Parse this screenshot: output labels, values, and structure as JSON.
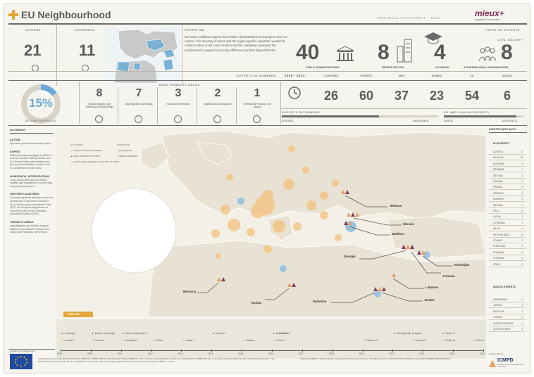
{
  "header": {
    "title": "EU Neighbourhood",
    "factsheet": "REGIONAL FACTSHEET · 2023",
    "brand": "mieux+",
    "brand_sub": "migration EU expertise"
  },
  "stats": {
    "actions_label": "ACTIONS",
    "actions_value": "21",
    "countries_label": "COUNTRIES",
    "countries_value": "11",
    "expertise_label": "EXPERTISE",
    "expertise_text": "Our team mobilises experts from Public Administrations in Europe to work on Actions. The diversity of topics and the region-specific expertise needed for certain Actions in the Latin America and the Caribbean prompted the involvement of experts from many different countries beyond the EU.",
    "types_label": "TYPES OF EXPERTS",
    "types": [
      {
        "value": "40",
        "label": "PUBLIC ADMINISTRATIONS"
      },
      {
        "value": "8",
        "label": "PRIVATE SECTOR"
      },
      {
        "value": "4",
        "label": "ACADEMIA"
      },
      {
        "value": "8",
        "label": "& INTERNATIONAL ORGANISATIONS"
      }
    ],
    "civil_society_label": "CIVIL SOCIETY",
    "portfolio_value": "15%",
    "portfolio_caption": "OF OUR PORTFOLIO",
    "portfolio_fraction": 0.15
  },
  "thematic": {
    "label": "MAIN THEMATIC AREAS",
    "items": [
      {
        "value": "8",
        "label": "Irregular Migration and Trafficking in Human Beings"
      },
      {
        "value": "7",
        "label": "Legal Migration and Mobility"
      },
      {
        "value": "3",
        "label": "Horizontal Interventions"
      },
      {
        "value": "2",
        "label": "Migration and Development"
      },
      {
        "value": "1",
        "label": "International Protection and Asylum"
      }
    ]
  },
  "experts_numbers": {
    "label": "EXPERTS IN NUMBERS",
    "period_label": "2009 - 2023",
    "items": [
      {
        "label": "COUNTRIES",
        "value": "26"
      },
      {
        "label": "EXPERTS",
        "value": "60"
      },
      {
        "label": "MEN",
        "value": "37"
      },
      {
        "label": "WOMEN",
        "value": "23"
      },
      {
        "label": "EU",
        "value": "54"
      },
      {
        "label": "NON-EU",
        "value": "6"
      }
    ],
    "gender_label": "EXPERTS BY GENDER",
    "men_text": "62% MEN",
    "women_text": "38% WOMEN",
    "men_fraction": 0.62,
    "origin_label": "EU AND NON-EU EXPERTS",
    "eu_text": "90% EU",
    "noneu_text": "10% NON-EU",
    "eu_fraction": 0.9
  },
  "glossary": {
    "title": "GLOSSARY",
    "entries": [
      {
        "term": "ACTION",
        "def": "Approved capacity development project."
      },
      {
        "term": "EXPERT",
        "def": "Skilled professional engaged by MIEUX+ to work on Actions. Mainly officials from EU Member States administrations but also from administrations outside of the EU, academia or private sector."
      },
      {
        "term": "HORIZONTAL INTERVENTIONS",
        "def": "Cross-cutting areas such as climate mobility, data management, human rights and policy development."
      },
      {
        "term": "PARTNER COUNTRIES",
        "def": "Countries eligible for assistance under the Development Cooperation Instrument (DCI), the European Development Fund (EDF), the European Neighbourhood Instrument (ENI) and the Overseas Association Decision (OAD)."
      },
      {
        "term": "THEMATIC AREAS",
        "def": "Legal Migration and Mobility, Irregular Migration, International Protection and Asylum and Horizontal Interventions."
      }
    ]
  },
  "legend": {
    "actions_label": "ACTIONS",
    "single": "SINGLE-COUNTRY ACTIONS",
    "multi": "MULTI-COUNTRY ACTIONS",
    "both": "BOTH SINGLE & MULTI-COUNTRY ACTIONS",
    "experts_label": "EXPERTS",
    "eu": "EU EXPERTS",
    "noneu": "NON-EU EXPERTS",
    "color_single": "#e8a062",
    "color_multi": "#8c3b5a",
    "color_eu": "#f5c17a",
    "color_noneu": "#8fbde0"
  },
  "countries": [
    "Belarus",
    "Ukraine",
    "Moldova",
    "Georgia",
    "Azerbaijan",
    "Armenia",
    "Lebanon",
    "Jordan",
    "Palestine",
    "Tunisia",
    "Morocco"
  ],
  "experts_with": {
    "title": "EXPERTS WITH AUTH.",
    "eu_title": "EU EXPERTS",
    "eu_rows": [
      {
        "name": "AUSTRIA",
        "value": "4"
      },
      {
        "name": "BELGIUM",
        "value": "10"
      },
      {
        "name": "BULGARIA",
        "value": "3"
      },
      {
        "name": "DENMARK",
        "value": "1"
      },
      {
        "name": "ESTONIA",
        "value": "1"
      },
      {
        "name": "FINLAND",
        "value": "1"
      },
      {
        "name": "FRANCE",
        "value": "3"
      },
      {
        "name": "GERMANY",
        "value": "1"
      },
      {
        "name": "HUNGARY",
        "value": "1"
      },
      {
        "name": "IRELAND",
        "value": "1"
      },
      {
        "name": "ITALY",
        "value": "4"
      },
      {
        "name": "LATVIA",
        "value": "1"
      },
      {
        "name": "LITHUANIA",
        "value": "1"
      },
      {
        "name": "MALTA",
        "value": "1"
      },
      {
        "name": "NETHERLANDS",
        "value": "4"
      },
      {
        "name": "POLAND",
        "value": "2"
      },
      {
        "name": "PORTUGAL",
        "value": "4"
      },
      {
        "name": "ROMANIA",
        "value": "3"
      },
      {
        "name": "SLOVENIA",
        "value": "4"
      },
      {
        "name": "SPAIN",
        "value": "4"
      }
    ],
    "noneu_title": "NON-EU EXPERTS",
    "noneu_rows": [
      {
        "name": "AZERBAIJAN",
        "value": "1"
      },
      {
        "name": "JORDAN",
        "value": "1"
      },
      {
        "name": "MOLDOVA",
        "value": "1"
      },
      {
        "name": "TUNISIA",
        "value": "1"
      },
      {
        "name": "UNITED KINGDOM",
        "value": "1"
      },
      {
        "name": "UNITED STATES",
        "value": "1"
      }
    ]
  },
  "timeline": {
    "label": "TIMELINE",
    "years": [
      "2009",
      "2010",
      "2011",
      "2012",
      "2013",
      "2014",
      "2015",
      "2016",
      "2017",
      "2018",
      "2019",
      "2020",
      "2021",
      "2022",
      "2023"
    ],
    "events": [
      {
        "text": "Azerbaijan",
        "row": 0,
        "col": 0
      },
      {
        "text": "Eastern Partnership",
        "row": 0,
        "col": 1
      },
      {
        "text": "Eastern Partnership II",
        "row": 0,
        "col": 2
      },
      {
        "text": "Armenia I",
        "row": 1,
        "col": 0
      },
      {
        "text": "Armenia",
        "row": 1,
        "col": 1
      },
      {
        "text": "Azerbaijan II",
        "row": 1,
        "col": 2
      },
      {
        "text": "Tunisia",
        "row": 1,
        "col": 3
      },
      {
        "text": "Morocco I",
        "row": 0,
        "col": 5
      },
      {
        "text": "Jordan I",
        "row": 1,
        "col": 4
      },
      {
        "text": "Lebanon",
        "row": 1,
        "col": 6
      },
      {
        "text": "Moldova IV",
        "row": 0,
        "col": 7
      },
      {
        "text": "Belarus",
        "row": 0,
        "col": 7.2
      },
      {
        "text": "Jordan II",
        "row": 1,
        "col": 7
      },
      {
        "text": "Azerbaijan III",
        "row": 0,
        "col": 11
      },
      {
        "text": "Moldova VI",
        "row": 1,
        "col": 10
      },
      {
        "text": "Georgia II",
        "row": 0,
        "col": 11.5
      },
      {
        "text": "Georgia III",
        "row": 1,
        "col": 11.6
      },
      {
        "text": "Jordan IV",
        "row": 0,
        "col": 12.6
      },
      {
        "text": "Tunisia III",
        "row": 1,
        "col": 12.6
      },
      {
        "text": "Jordan V",
        "row": 1,
        "col": 13.6
      }
    ]
  },
  "footer": {
    "funded_by": "Funded by the European Union",
    "disclaimer": "This publication has been produced under the (MIEUX+) ICMPD Migration EU Expertise Initiative (MIEUX+). The contents of this publication are the sole responsibility of ICMPD and can in no way be taken to reflect the views of the European Union. The boundaries and names shown and the designations used on this map do not imply official endorsement or acceptance by either ICMPD or the EU.",
    "source": "Data about MIEUX+ Actions has been compiled from internal documents. The data is correct as at 15.05.2023. Published in April 2023 @ MIEUX@ICMPD.ORG",
    "implemented_by": "Implemented by",
    "icmpd": "ICMPD",
    "icmpd_sub": "International Centre for Migration Policy Development"
  }
}
